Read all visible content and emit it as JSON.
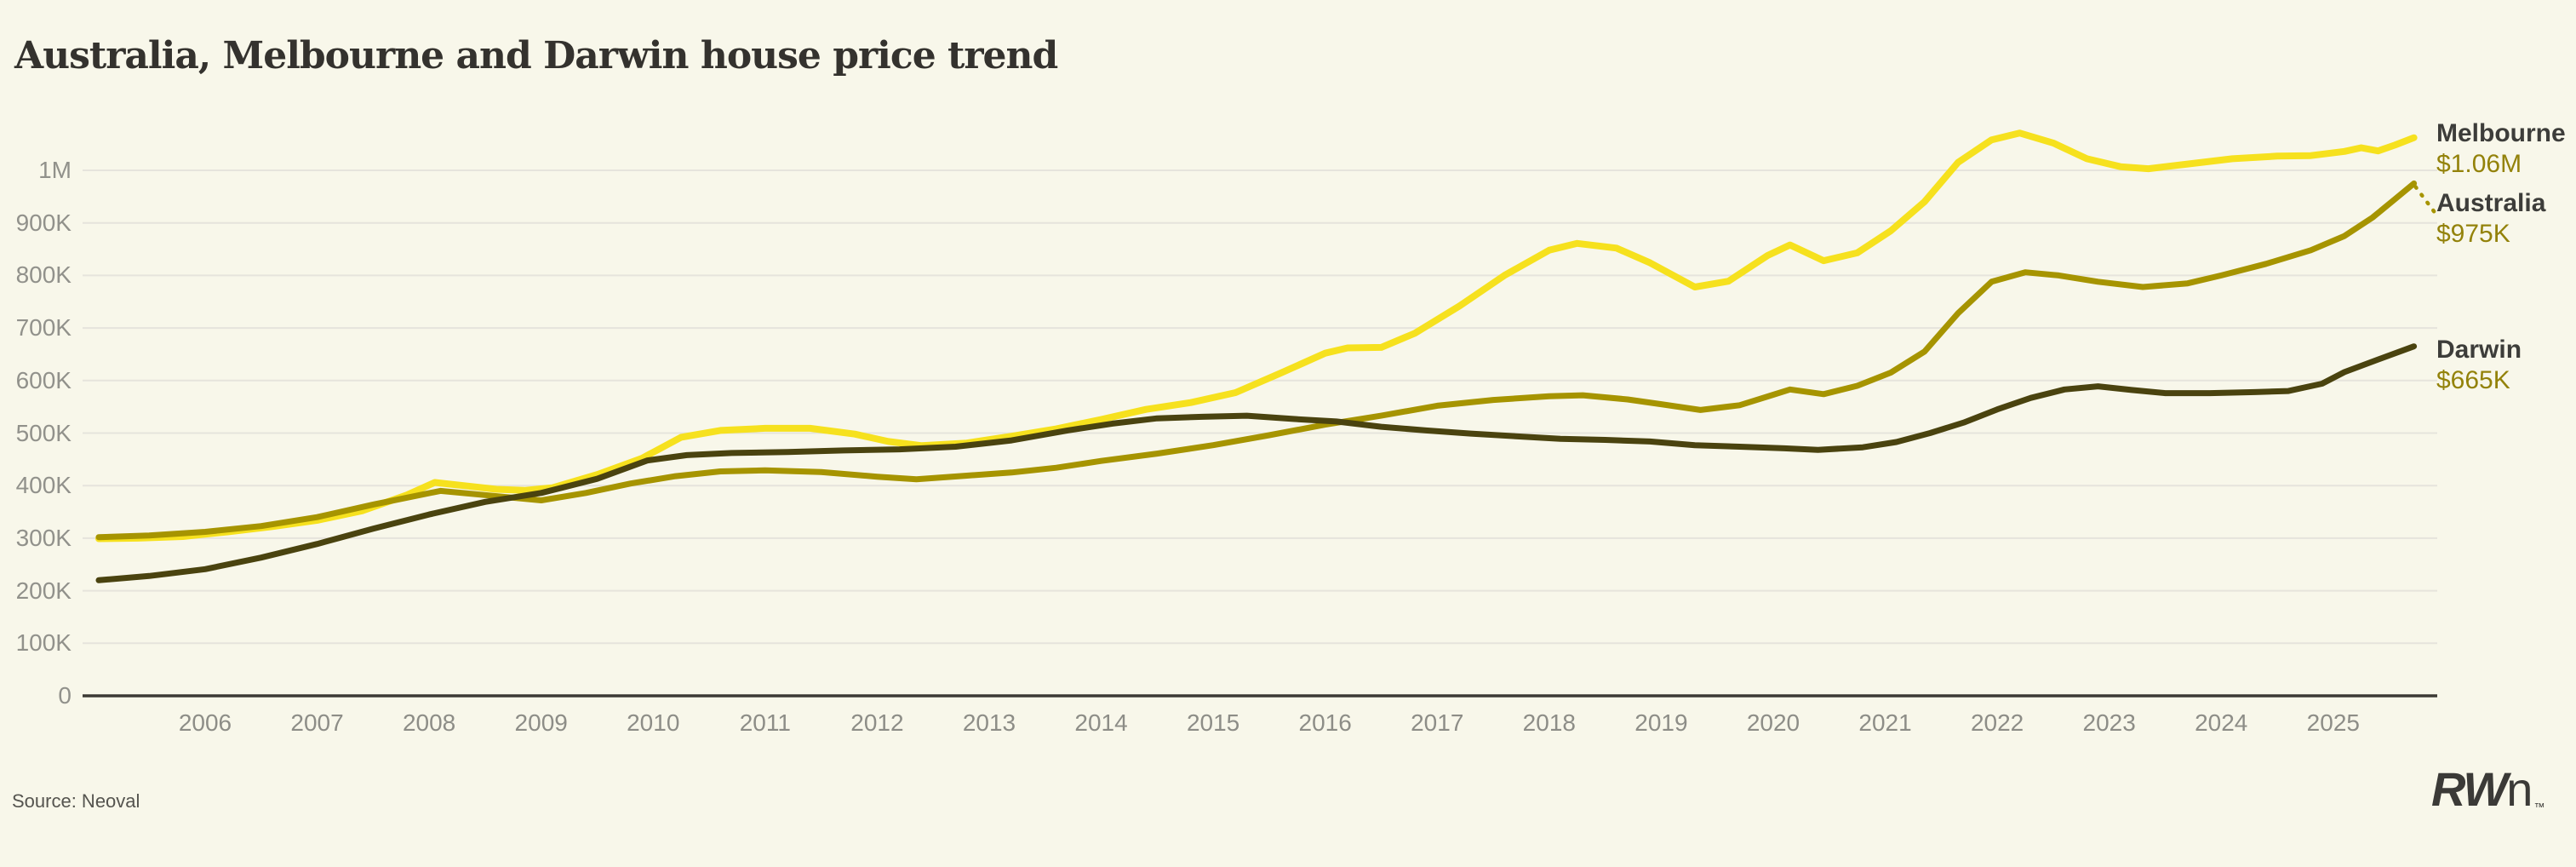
{
  "title": "Australia, Melbourne and Darwin house price trend",
  "source": "Source: Neoval",
  "logo": {
    "bold": "RW",
    "light": "n",
    "tm": "™"
  },
  "colors": {
    "background": "#f8f7ea",
    "grid": "#e6e4dc",
    "axis": "#3c3a35",
    "tick_label": "#8f8f8a",
    "title": "#34322e",
    "legend_name": "#3d3d3a",
    "legend_value": "#93820a",
    "melbourne": "#f6e11e",
    "australia": "#a69400",
    "darwin": "#4a430f"
  },
  "chart_data": {
    "type": "line",
    "title": "Australia, Melbourne and Darwin house price trend",
    "xlabel": "",
    "ylabel": "",
    "grid": "horizontal",
    "legend_position": "right-of-line-ends",
    "x_range_years": [
      2005.05,
      2025.72
    ],
    "ylim_k": [
      0,
      1080
    ],
    "x_ticks": [
      2006,
      2007,
      2008,
      2009,
      2010,
      2011,
      2012,
      2013,
      2014,
      2015,
      2016,
      2017,
      2018,
      2019,
      2020,
      2021,
      2022,
      2023,
      2024,
      2025
    ],
    "y_ticks": [
      {
        "value_k": 0,
        "label": "0"
      },
      {
        "value_k": 100,
        "label": "100K"
      },
      {
        "value_k": 200,
        "label": "200K"
      },
      {
        "value_k": 300,
        "label": "300K"
      },
      {
        "value_k": 400,
        "label": "400K"
      },
      {
        "value_k": 500,
        "label": "500K"
      },
      {
        "value_k": 600,
        "label": "600K"
      },
      {
        "value_k": 700,
        "label": "700K"
      },
      {
        "value_k": 800,
        "label": "800K"
      },
      {
        "value_k": 900,
        "label": "900K"
      },
      {
        "value_k": 1000,
        "label": "1M"
      }
    ],
    "series": [
      {
        "name": "Melbourne",
        "end_value_label": "$1.06M",
        "color_key": "melbourne",
        "stroke_width": 8,
        "leader_dotted": false,
        "points_year_valueK": [
          [
            2005.05,
            299
          ],
          [
            2005.4,
            300
          ],
          [
            2005.8,
            303
          ],
          [
            2006.2,
            312
          ],
          [
            2006.6,
            322
          ],
          [
            2007.0,
            334
          ],
          [
            2007.4,
            352
          ],
          [
            2007.8,
            382
          ],
          [
            2008.05,
            406
          ],
          [
            2008.35,
            399
          ],
          [
            2008.6,
            393
          ],
          [
            2008.85,
            391
          ],
          [
            2009.1,
            396
          ],
          [
            2009.5,
            421
          ],
          [
            2009.9,
            452
          ],
          [
            2010.25,
            492
          ],
          [
            2010.6,
            505
          ],
          [
            2011.0,
            509
          ],
          [
            2011.4,
            509
          ],
          [
            2011.8,
            498
          ],
          [
            2012.1,
            484
          ],
          [
            2012.4,
            476
          ],
          [
            2012.8,
            481
          ],
          [
            2013.2,
            494
          ],
          [
            2013.6,
            508
          ],
          [
            2014.0,
            526
          ],
          [
            2014.4,
            545
          ],
          [
            2014.8,
            558
          ],
          [
            2015.2,
            577
          ],
          [
            2015.6,
            614
          ],
          [
            2016.0,
            652
          ],
          [
            2016.2,
            662
          ],
          [
            2016.5,
            663
          ],
          [
            2016.8,
            690
          ],
          [
            2017.2,
            742
          ],
          [
            2017.6,
            800
          ],
          [
            2018.0,
            848
          ],
          [
            2018.25,
            861
          ],
          [
            2018.6,
            852
          ],
          [
            2018.9,
            824
          ],
          [
            2019.3,
            778
          ],
          [
            2019.6,
            789
          ],
          [
            2019.95,
            838
          ],
          [
            2020.15,
            858
          ],
          [
            2020.45,
            828
          ],
          [
            2020.75,
            843
          ],
          [
            2021.05,
            885
          ],
          [
            2021.35,
            940
          ],
          [
            2021.65,
            1015
          ],
          [
            2021.95,
            1058
          ],
          [
            2022.2,
            1071
          ],
          [
            2022.5,
            1052
          ],
          [
            2022.8,
            1022
          ],
          [
            2023.1,
            1007
          ],
          [
            2023.35,
            1003
          ],
          [
            2023.7,
            1012
          ],
          [
            2024.1,
            1022
          ],
          [
            2024.5,
            1027
          ],
          [
            2024.8,
            1028
          ],
          [
            2025.1,
            1036
          ],
          [
            2025.25,
            1043
          ],
          [
            2025.4,
            1037
          ],
          [
            2025.55,
            1048
          ],
          [
            2025.72,
            1062
          ]
        ]
      },
      {
        "name": "Australia",
        "end_value_label": "$975K",
        "color_key": "australia",
        "stroke_width": 7,
        "leader_dotted": true,
        "points_year_valueK": [
          [
            2005.05,
            302
          ],
          [
            2005.5,
            305
          ],
          [
            2006.0,
            312
          ],
          [
            2006.5,
            323
          ],
          [
            2007.0,
            340
          ],
          [
            2007.5,
            364
          ],
          [
            2008.1,
            390
          ],
          [
            2008.5,
            382
          ],
          [
            2009.0,
            372
          ],
          [
            2009.4,
            386
          ],
          [
            2009.8,
            404
          ],
          [
            2010.2,
            418
          ],
          [
            2010.6,
            427
          ],
          [
            2011.0,
            429
          ],
          [
            2011.5,
            426
          ],
          [
            2012.0,
            417
          ],
          [
            2012.35,
            412
          ],
          [
            2012.8,
            419
          ],
          [
            2013.2,
            425
          ],
          [
            2013.6,
            434
          ],
          [
            2014.0,
            447
          ],
          [
            2014.5,
            461
          ],
          [
            2015.0,
            477
          ],
          [
            2015.5,
            496
          ],
          [
            2016.0,
            516
          ],
          [
            2016.5,
            533
          ],
          [
            2017.0,
            552
          ],
          [
            2017.5,
            563
          ],
          [
            2018.0,
            570
          ],
          [
            2018.3,
            572
          ],
          [
            2018.7,
            564
          ],
          [
            2019.0,
            555
          ],
          [
            2019.35,
            544
          ],
          [
            2019.7,
            553
          ],
          [
            2020.0,
            573
          ],
          [
            2020.15,
            583
          ],
          [
            2020.45,
            574
          ],
          [
            2020.75,
            590
          ],
          [
            2021.05,
            615
          ],
          [
            2021.35,
            655
          ],
          [
            2021.65,
            728
          ],
          [
            2021.95,
            788
          ],
          [
            2022.25,
            806
          ],
          [
            2022.55,
            800
          ],
          [
            2022.9,
            788
          ],
          [
            2023.3,
            778
          ],
          [
            2023.7,
            785
          ],
          [
            2024.0,
            800
          ],
          [
            2024.4,
            822
          ],
          [
            2024.8,
            848
          ],
          [
            2025.1,
            875
          ],
          [
            2025.35,
            910
          ],
          [
            2025.55,
            945
          ],
          [
            2025.72,
            975
          ]
        ]
      },
      {
        "name": "Darwin",
        "end_value_label": "$665K",
        "color_key": "darwin",
        "stroke_width": 7,
        "leader_dotted": false,
        "points_year_valueK": [
          [
            2005.05,
            220
          ],
          [
            2005.5,
            228
          ],
          [
            2006.0,
            241
          ],
          [
            2006.5,
            263
          ],
          [
            2007.0,
            289
          ],
          [
            2007.5,
            318
          ],
          [
            2008.0,
            345
          ],
          [
            2008.5,
            369
          ],
          [
            2009.0,
            386
          ],
          [
            2009.5,
            413
          ],
          [
            2009.95,
            448
          ],
          [
            2010.3,
            458
          ],
          [
            2010.7,
            462
          ],
          [
            2011.2,
            464
          ],
          [
            2011.7,
            467
          ],
          [
            2012.2,
            469
          ],
          [
            2012.7,
            474
          ],
          [
            2013.2,
            486
          ],
          [
            2013.7,
            505
          ],
          [
            2014.1,
            518
          ],
          [
            2014.5,
            528
          ],
          [
            2014.9,
            531
          ],
          [
            2015.3,
            533
          ],
          [
            2015.7,
            527
          ],
          [
            2016.1,
            522
          ],
          [
            2016.5,
            512
          ],
          [
            2016.9,
            505
          ],
          [
            2017.3,
            499
          ],
          [
            2017.7,
            494
          ],
          [
            2018.1,
            489
          ],
          [
            2018.5,
            487
          ],
          [
            2018.9,
            484
          ],
          [
            2019.3,
            477
          ],
          [
            2019.7,
            474
          ],
          [
            2020.1,
            471
          ],
          [
            2020.4,
            468
          ],
          [
            2020.8,
            473
          ],
          [
            2021.1,
            483
          ],
          [
            2021.4,
            500
          ],
          [
            2021.7,
            520
          ],
          [
            2022.0,
            545
          ],
          [
            2022.3,
            567
          ],
          [
            2022.6,
            583
          ],
          [
            2022.9,
            589
          ],
          [
            2023.2,
            582
          ],
          [
            2023.5,
            576
          ],
          [
            2023.9,
            576
          ],
          [
            2024.3,
            578
          ],
          [
            2024.6,
            580
          ],
          [
            2024.9,
            594
          ],
          [
            2025.1,
            616
          ],
          [
            2025.4,
            640
          ],
          [
            2025.72,
            665
          ]
        ]
      }
    ]
  }
}
